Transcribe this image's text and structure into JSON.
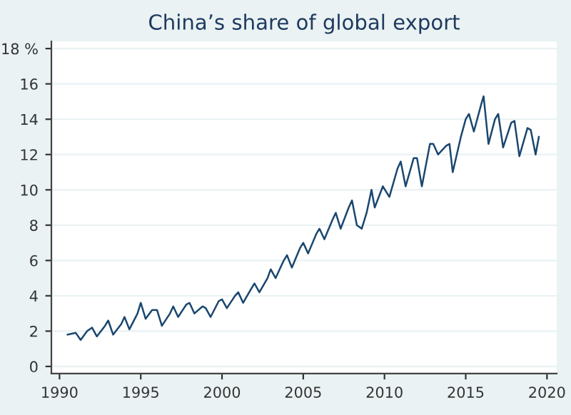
{
  "chart_data": {
    "type": "line",
    "title": "China’s share of global export",
    "x": [
      1990.5,
      1991,
      1991.3,
      1991.7,
      1992,
      1992.3,
      1992.8,
      1993,
      1993.3,
      1993.8,
      1994,
      1994.3,
      1994.8,
      1995,
      1995.3,
      1995.7,
      1996,
      1996.3,
      1996.8,
      1997,
      1997.3,
      1997.8,
      1998,
      1998.3,
      1998.8,
      1999,
      1999.3,
      1999.8,
      2000,
      2000.3,
      2000.8,
      2001,
      2001.3,
      2001.8,
      2002,
      2002.3,
      2002.8,
      2003,
      2003.3,
      2003.8,
      2004,
      2004.3,
      2004.8,
      2005,
      2005.3,
      2005.8,
      2006,
      2006.3,
      2006.8,
      2007,
      2007.3,
      2007.8,
      2008,
      2008.3,
      2008.6,
      2008.9,
      2009.2,
      2009.4,
      2009.9,
      2010.3,
      2010.8,
      2011,
      2011.3,
      2011.8,
      2012,
      2012.3,
      2012.8,
      2013,
      2013.3,
      2013.8,
      2014,
      2014.2,
      2014.7,
      2015,
      2015.2,
      2015.5,
      2016,
      2016.1,
      2016.4,
      2016.8,
      2017,
      2017.3,
      2017.8,
      2018,
      2018.3,
      2018.8,
      2019,
      2019.3,
      2019.5
    ],
    "series": [
      {
        "color": "#1a476f",
        "values": [
          1.8,
          1.9,
          1.5,
          2.0,
          2.2,
          1.7,
          2.3,
          2.6,
          1.8,
          2.4,
          2.8,
          2.1,
          3.0,
          3.6,
          2.7,
          3.2,
          3.2,
          2.3,
          3.0,
          3.4,
          2.8,
          3.5,
          3.6,
          3.0,
          3.4,
          3.3,
          2.8,
          3.7,
          3.8,
          3.3,
          4.0,
          4.2,
          3.6,
          4.4,
          4.7,
          4.2,
          5.0,
          5.5,
          5.0,
          6.0,
          6.3,
          5.6,
          6.7,
          7.0,
          6.4,
          7.5,
          7.8,
          7.2,
          8.3,
          8.7,
          7.8,
          9.0,
          9.4,
          8.0,
          7.8,
          8.7,
          10.0,
          9.0,
          10.2,
          9.6,
          11.2,
          11.6,
          10.2,
          11.8,
          11.8,
          10.2,
          12.6,
          12.6,
          12.0,
          12.5,
          12.6,
          11.0,
          13.0,
          14.0,
          14.3,
          13.3,
          15.0,
          15.3,
          12.6,
          14.0,
          14.3,
          12.4,
          13.8,
          13.9,
          11.9,
          13.5,
          13.4,
          12.0,
          13.0
        ]
      }
    ],
    "xlim": [
      1989.5,
      2020.6
    ],
    "xticks": [
      1990,
      1995,
      2000,
      2005,
      2010,
      2015,
      2020
    ],
    "ylim": [
      -0.4,
      18.4
    ],
    "yticks": [
      0,
      2,
      4,
      6,
      8,
      10,
      12,
      14,
      16,
      {
        "value": 18,
        "label": "18 %"
      }
    ],
    "grid": "y",
    "line_style": "solid",
    "marker": "none",
    "legend": false
  }
}
